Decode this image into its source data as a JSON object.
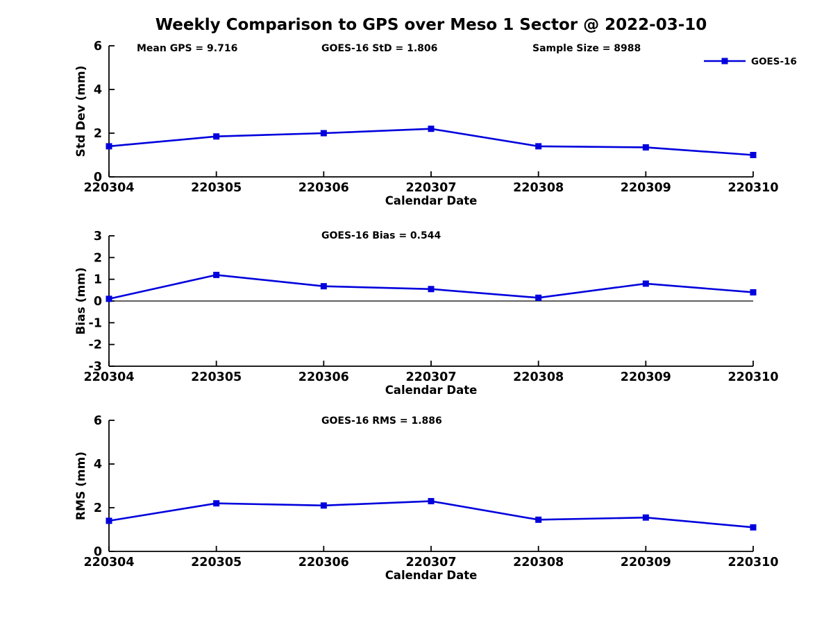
{
  "figure": {
    "title": "Weekly Comparison to GPS over Meso 1 Sector @ 2022-03-10",
    "annotations": {
      "mean_gps": "Mean GPS = 9.716",
      "goes_std": "GOES-16 StD = 1.806",
      "sample_size": "Sample Size = 8988"
    },
    "legend": {
      "label": "GOES-16",
      "position": "top-right-outside"
    },
    "colors": {
      "series": "#0000DD",
      "axis": "#000000",
      "background": "#ffffff"
    }
  },
  "chart_data": {
    "type": "line",
    "marker": "square",
    "grid": false,
    "x_categories": [
      "220304",
      "220305",
      "220306",
      "220307",
      "220308",
      "220309",
      "220310"
    ],
    "xlabel": "Calendar Date",
    "series_name": "GOES-16",
    "line_color": "#0000DD",
    "panels": [
      {
        "id": "std-dev",
        "ylabel": "Std Dev (mm)",
        "title": "",
        "ylim": [
          0,
          6
        ],
        "yticks": [
          0,
          2,
          4,
          6
        ],
        "values": [
          1.4,
          1.85,
          2.0,
          2.2,
          1.4,
          1.35,
          1.0
        ],
        "zero_line": false
      },
      {
        "id": "bias",
        "ylabel": "Bias (mm)",
        "title": "GOES-16 Bias  = 0.544",
        "ylim": [
          -3,
          3
        ],
        "yticks": [
          3,
          2,
          1,
          0,
          -1,
          -2,
          -3
        ],
        "values": [
          0.1,
          1.2,
          0.68,
          0.55,
          0.15,
          0.8,
          0.4
        ],
        "zero_line": true
      },
      {
        "id": "rms",
        "ylabel": "RMS (mm)",
        "title": "GOES-16 RMS = 1.886",
        "ylim": [
          0,
          6
        ],
        "yticks": [
          0,
          2,
          4,
          6
        ],
        "values": [
          1.4,
          2.2,
          2.1,
          2.3,
          1.45,
          1.55,
          1.1
        ],
        "zero_line": false
      }
    ]
  }
}
